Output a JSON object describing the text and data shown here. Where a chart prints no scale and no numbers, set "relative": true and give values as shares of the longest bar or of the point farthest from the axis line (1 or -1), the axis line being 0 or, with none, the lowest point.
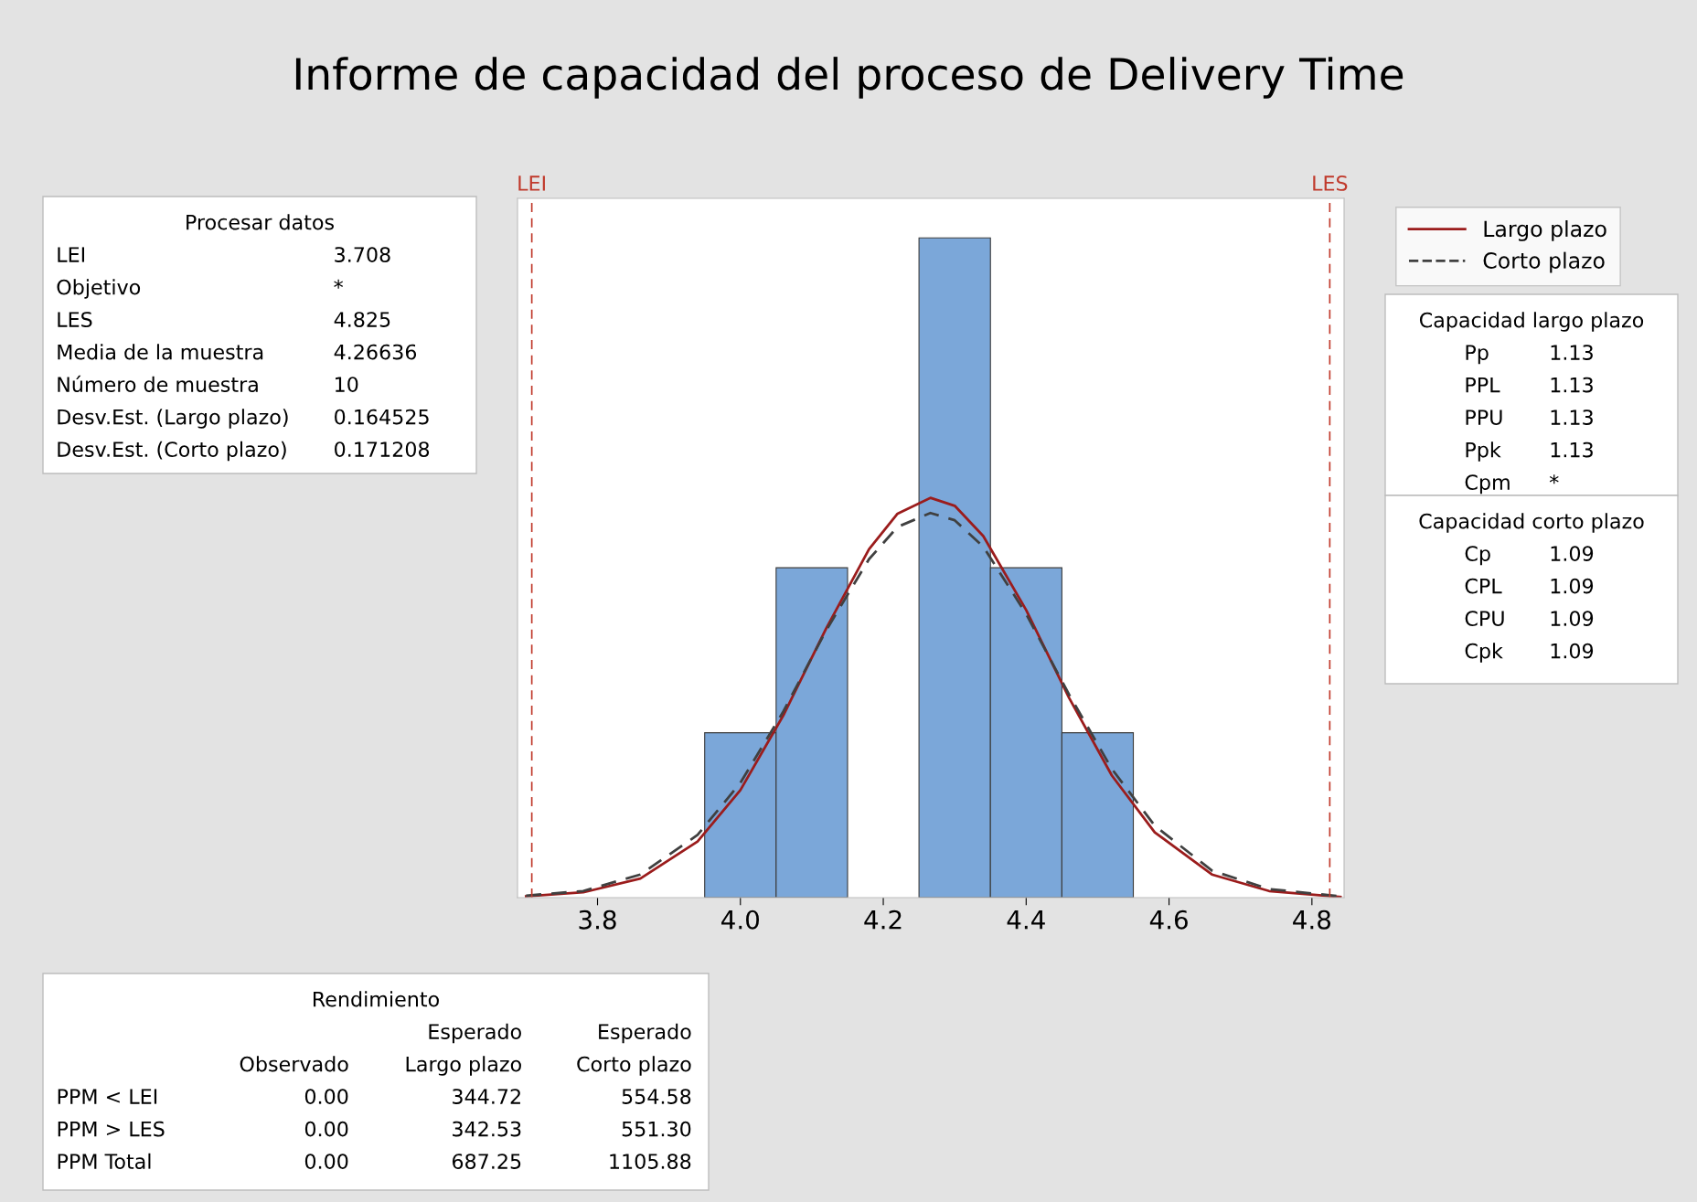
{
  "chart_data": {
    "type": "histogram",
    "title": "Informe de capacidad del proceso de Delivery Time",
    "relative": true,
    "bins": [
      3.95,
      4.05,
      4.15,
      4.25,
      4.35,
      4.45,
      4.55
    ],
    "values": [
      0.25,
      0.5,
      0,
      1,
      0.5,
      0.25
    ],
    "color": "#7ba7d9",
    "xlim": [
      3.688,
      4.845
    ],
    "xticks": [
      3.8,
      {
        "value": 4.0,
        "label": "4.0"
      },
      4.2,
      4.4,
      4.6,
      4.8
    ],
    "grid": false,
    "legend": "right",
    "series": [
      {
        "name": "Largo plazo",
        "type": "line",
        "color": "#9b1c1c",
        "line_style": "solid",
        "x": [
          3.7,
          3.78,
          3.86,
          3.94,
          4.0,
          4.06,
          4.12,
          4.18,
          4.22,
          4.266,
          4.3,
          4.34,
          4.4,
          4.46,
          4.52,
          4.58,
          4.66,
          4.74,
          4.84
        ],
        "values": [
          0.002,
          0.008,
          0.029,
          0.085,
          0.163,
          0.276,
          0.408,
          0.528,
          0.582,
          0.606,
          0.594,
          0.548,
          0.436,
          0.303,
          0.185,
          0.099,
          0.035,
          0.01,
          0.001
        ]
      },
      {
        "name": "Corto plazo",
        "type": "line",
        "color": "#404040",
        "line_style": "dashed",
        "x": [
          3.7,
          3.78,
          3.86,
          3.94,
          4.0,
          4.06,
          4.12,
          4.18,
          4.22,
          4.266,
          4.3,
          4.34,
          4.4,
          4.46,
          4.52,
          4.58,
          4.66,
          4.74,
          4.84
        ],
        "values": [
          0.003,
          0.01,
          0.035,
          0.095,
          0.174,
          0.282,
          0.405,
          0.513,
          0.562,
          0.583,
          0.572,
          0.532,
          0.43,
          0.308,
          0.195,
          0.109,
          0.041,
          0.013,
          0.002
        ]
      }
    ],
    "ref_lines": [
      {
        "axis": "x",
        "value": 3.708,
        "label": "LEI",
        "color": "#c0392b",
        "line_style": "dashed"
      },
      {
        "axis": "x",
        "value": 4.825,
        "label": "LES",
        "color": "#c0392b",
        "line_style": "dashed"
      }
    ],
    "annotations": [
      "Procesar datos\nLEI\t3.708\nObjetivo\t*\nLES\t4.825\nMedia de la muestra\t4.26636\nNúmero de muestra\t10\nDesv.Est. (Largo plazo)\t0.164525\nDesv.Est. (Corto plazo)\t0.171208",
      "Capacidad largo plazo\nPp\t1.13\nPPL\t1.13\nPPU\t1.13\nPpk\t1.13\nCpm\t*",
      "Capacidad corto plazo\nCp\t1.09\nCPL\t1.09\nCPU\t1.09\nCpk\t1.09",
      "Rendimiento\n\t\tEsperado\tEsperado\n\tObservado\tLargo plazo\tCorto plazo\nPPM < LEI\t0.00\t344.72\t554.58\nPPM > LES\t0.00\t342.53\t551.30\nPPM Total\t0.00\t687.25\t1105.88"
    ]
  }
}
